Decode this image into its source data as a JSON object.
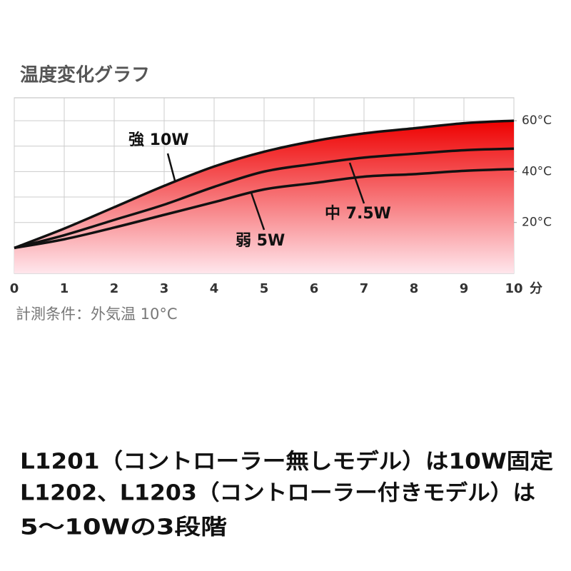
{
  "chart_data": {
    "type": "line",
    "title": "温度変化グラフ",
    "x": [
      0,
      1,
      2,
      3,
      4,
      5,
      6,
      7,
      8,
      9,
      10
    ],
    "xlabel": "分",
    "series": [
      {
        "name": "強 10W",
        "color": "#111111",
        "values": [
          10,
          17.6,
          26,
          34.4,
          42,
          47.8,
          52,
          55,
          57,
          59,
          60
        ]
      },
      {
        "name": "中 7.5W",
        "color": "#111111",
        "values": [
          10,
          15,
          21,
          27,
          34,
          40,
          43,
          45.5,
          47,
          48.4,
          49
        ]
      },
      {
        "name": "弱 5W",
        "color": "#111111",
        "values": [
          10,
          13.4,
          18,
          23,
          28,
          33,
          35.5,
          38,
          39,
          40.3,
          41
        ]
      }
    ],
    "fill_color": "#ee0000",
    "xlim": [
      0,
      10
    ],
    "xticks": [
      0,
      1,
      2,
      3,
      4,
      5,
      6,
      7,
      8,
      9,
      10
    ],
    "ylim": [
      0,
      69
    ],
    "yticks": [
      {
        "value": 20,
        "label": "20°C"
      },
      {
        "value": 40,
        "label": "40°C"
      },
      {
        "value": 60,
        "label": "60°C"
      }
    ],
    "grid": true,
    "grid_step": 10,
    "note": "計測条件：外気温 10°C"
  },
  "footer": {
    "lines": [
      "L1201（コントローラー無しモデル）は10W固定",
      "L1202、L1203（コントローラー付きモデル）は",
      "5～10Wの3段階"
    ]
  }
}
